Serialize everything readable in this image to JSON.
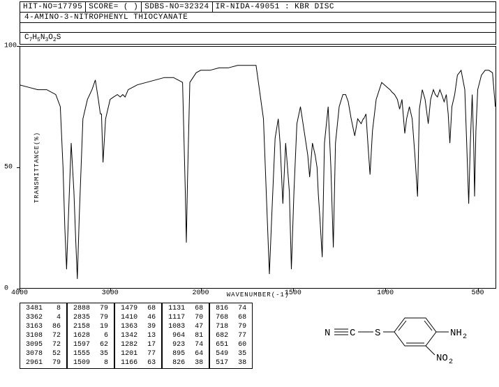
{
  "header": {
    "hit_no": "HIT-NO=17795",
    "score": "SCORE=   (   )",
    "sdbs_no": "SDBS-NO=32324",
    "ir_info": "IR-NIDA-49051 : KBR DISC"
  },
  "title": "4-AMINO-3-NITROPHENYL THIOCYANATE",
  "formula_html": "C<sub>7</sub>H<sub>5</sub>N<sub>3</sub>O<sub>2</sub>S",
  "chart": {
    "ylabel": "TRANSMITTANCE(%)",
    "xlabel": "WAVENUMBER(-1)",
    "xlim": [
      4000,
      400
    ],
    "ylim": [
      0,
      100
    ],
    "yticks": [
      0,
      50,
      100
    ],
    "xticks": [
      4000,
      3000,
      2000,
      1500,
      1000,
      500
    ],
    "background_color": "#ffffff",
    "line_color": "#000000",
    "line_width": 1,
    "spectrum": [
      [
        4000,
        84
      ],
      [
        3900,
        83
      ],
      [
        3800,
        82
      ],
      [
        3700,
        82
      ],
      [
        3600,
        80
      ],
      [
        3550,
        75
      ],
      [
        3520,
        50
      ],
      [
        3500,
        25
      ],
      [
        3481,
        8
      ],
      [
        3460,
        30
      ],
      [
        3430,
        60
      ],
      [
        3400,
        40
      ],
      [
        3380,
        20
      ],
      [
        3362,
        4
      ],
      [
        3340,
        30
      ],
      [
        3300,
        70
      ],
      [
        3250,
        78
      ],
      [
        3200,
        82
      ],
      [
        3163,
        86
      ],
      [
        3130,
        78
      ],
      [
        3108,
        72
      ],
      [
        3095,
        72
      ],
      [
        3078,
        52
      ],
      [
        3050,
        70
      ],
      [
        3000,
        78
      ],
      [
        2961,
        79
      ],
      [
        2920,
        80
      ],
      [
        2888,
        79
      ],
      [
        2860,
        80
      ],
      [
        2835,
        79
      ],
      [
        2800,
        82
      ],
      [
        2700,
        84
      ],
      [
        2600,
        85
      ],
      [
        2500,
        86
      ],
      [
        2400,
        87
      ],
      [
        2300,
        87
      ],
      [
        2200,
        85
      ],
      [
        2170,
        40
      ],
      [
        2158,
        19
      ],
      [
        2145,
        45
      ],
      [
        2120,
        85
      ],
      [
        2050,
        89
      ],
      [
        2000,
        90
      ],
      [
        1950,
        90
      ],
      [
        1900,
        91
      ],
      [
        1850,
        91
      ],
      [
        1800,
        92
      ],
      [
        1750,
        92
      ],
      [
        1700,
        92
      ],
      [
        1660,
        70
      ],
      [
        1640,
        30
      ],
      [
        1628,
        6
      ],
      [
        1615,
        30
      ],
      [
        1597,
        62
      ],
      [
        1580,
        70
      ],
      [
        1570,
        60
      ],
      [
        1555,
        35
      ],
      [
        1540,
        60
      ],
      [
        1520,
        40
      ],
      [
        1509,
        8
      ],
      [
        1495,
        40
      ],
      [
        1479,
        68
      ],
      [
        1460,
        75
      ],
      [
        1440,
        65
      ],
      [
        1420,
        55
      ],
      [
        1410,
        46
      ],
      [
        1395,
        60
      ],
      [
        1380,
        55
      ],
      [
        1370,
        50
      ],
      [
        1363,
        39
      ],
      [
        1355,
        30
      ],
      [
        1342,
        13
      ],
      [
        1330,
        60
      ],
      [
        1310,
        75
      ],
      [
        1295,
        50
      ],
      [
        1282,
        17
      ],
      [
        1270,
        60
      ],
      [
        1250,
        75
      ],
      [
        1230,
        80
      ],
      [
        1215,
        80
      ],
      [
        1201,
        77
      ],
      [
        1185,
        70
      ],
      [
        1166,
        63
      ],
      [
        1150,
        70
      ],
      [
        1131,
        68
      ],
      [
        1120,
        70
      ],
      [
        1117,
        70
      ],
      [
        1105,
        72
      ],
      [
        1095,
        60
      ],
      [
        1083,
        47
      ],
      [
        1070,
        65
      ],
      [
        1050,
        78
      ],
      [
        1020,
        85
      ],
      [
        990,
        83
      ],
      [
        975,
        82
      ],
      [
        964,
        81
      ],
      [
        950,
        80
      ],
      [
        935,
        78
      ],
      [
        923,
        74
      ],
      [
        910,
        78
      ],
      [
        895,
        64
      ],
      [
        885,
        70
      ],
      [
        870,
        75
      ],
      [
        855,
        70
      ],
      [
        840,
        55
      ],
      [
        826,
        38
      ],
      [
        816,
        74
      ],
      [
        800,
        82
      ],
      [
        785,
        78
      ],
      [
        768,
        68
      ],
      [
        755,
        78
      ],
      [
        740,
        82
      ],
      [
        730,
        80
      ],
      [
        718,
        79
      ],
      [
        705,
        82
      ],
      [
        695,
        80
      ],
      [
        682,
        77
      ],
      [
        670,
        80
      ],
      [
        660,
        72
      ],
      [
        651,
        60
      ],
      [
        640,
        75
      ],
      [
        625,
        80
      ],
      [
        610,
        88
      ],
      [
        590,
        90
      ],
      [
        570,
        82
      ],
      [
        560,
        60
      ],
      [
        549,
        35
      ],
      [
        540,
        60
      ],
      [
        530,
        80
      ],
      [
        522,
        60
      ],
      [
        517,
        38
      ],
      [
        510,
        65
      ],
      [
        500,
        82
      ],
      [
        480,
        88
      ],
      [
        460,
        90
      ],
      [
        440,
        90
      ],
      [
        420,
        89
      ],
      [
        405,
        75
      ]
    ]
  },
  "peak_tables": [
    [
      [
        "3481",
        "8"
      ],
      [
        "3362",
        "4"
      ],
      [
        "3163",
        "86"
      ],
      [
        "3108",
        "72"
      ],
      [
        "3095",
        "72"
      ],
      [
        "3078",
        "52"
      ],
      [
        "2961",
        "79"
      ]
    ],
    [
      [
        "2888",
        "79"
      ],
      [
        "2835",
        "79"
      ],
      [
        "2158",
        "19"
      ],
      [
        "1628",
        "6"
      ],
      [
        "1597",
        "62"
      ],
      [
        "1555",
        "35"
      ],
      [
        "1509",
        "8"
      ]
    ],
    [
      [
        "1479",
        "68"
      ],
      [
        "1410",
        "46"
      ],
      [
        "1363",
        "39"
      ],
      [
        "1342",
        "13"
      ],
      [
        "1282",
        "17"
      ],
      [
        "1201",
        "77"
      ],
      [
        "1166",
        "63"
      ]
    ],
    [
      [
        "1131",
        "68"
      ],
      [
        "1117",
        "70"
      ],
      [
        "1083",
        "47"
      ],
      [
        "964",
        "81"
      ],
      [
        "923",
        "74"
      ],
      [
        "895",
        "64"
      ],
      [
        "826",
        "38"
      ]
    ],
    [
      [
        "816",
        "74"
      ],
      [
        "768",
        "68"
      ],
      [
        "718",
        "79"
      ],
      [
        "682",
        "77"
      ],
      [
        "651",
        "60"
      ],
      [
        "549",
        "35"
      ],
      [
        "517",
        "38"
      ]
    ]
  ],
  "molecule": {
    "labels": {
      "n": "N",
      "c": "C",
      "s": "S",
      "nh2": "NH",
      "no2": "NO",
      "sub2": "2"
    },
    "text_fontsize": 14,
    "sub_fontsize": 10
  }
}
